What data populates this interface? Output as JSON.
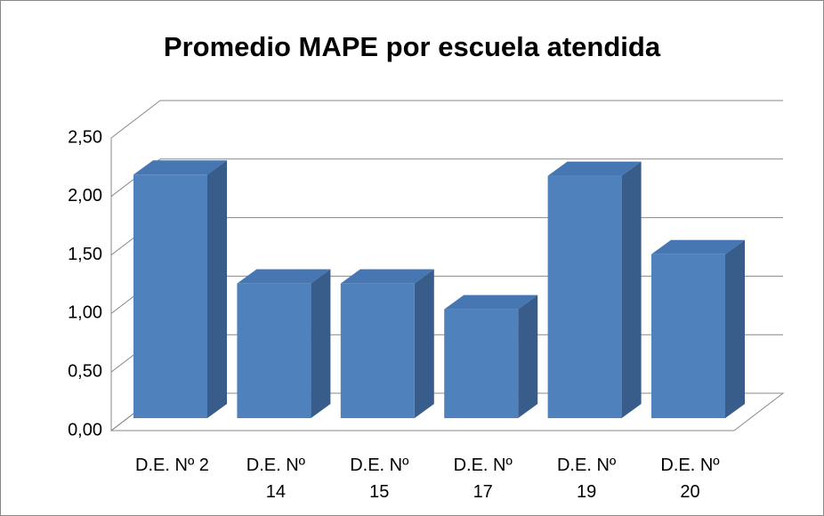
{
  "chart_data": {
    "type": "bar3d",
    "title": "Promedio MAPE por escuela atendida",
    "categories": [
      "D.E. Nº 2",
      "D.E. Nº 14",
      "D.E. Nº 15",
      "D.E. Nº 17",
      "D.E. Nº 19",
      "D.E. Nº 20"
    ],
    "values": [
      2.08,
      1.15,
      1.15,
      0.93,
      2.07,
      1.4
    ],
    "color": "#4f81bd",
    "ylim": [
      0,
      2.5
    ],
    "yticks": [
      {
        "value": 0,
        "label": "0,00"
      },
      {
        "value": 0.5,
        "label": "0,50"
      },
      {
        "value": 1,
        "label": "1,00"
      },
      {
        "value": 1.5,
        "label": "1,50"
      },
      {
        "value": 2,
        "label": "2,00"
      },
      {
        "value": 2.5,
        "label": "2,50"
      }
    ],
    "grid": true
  }
}
